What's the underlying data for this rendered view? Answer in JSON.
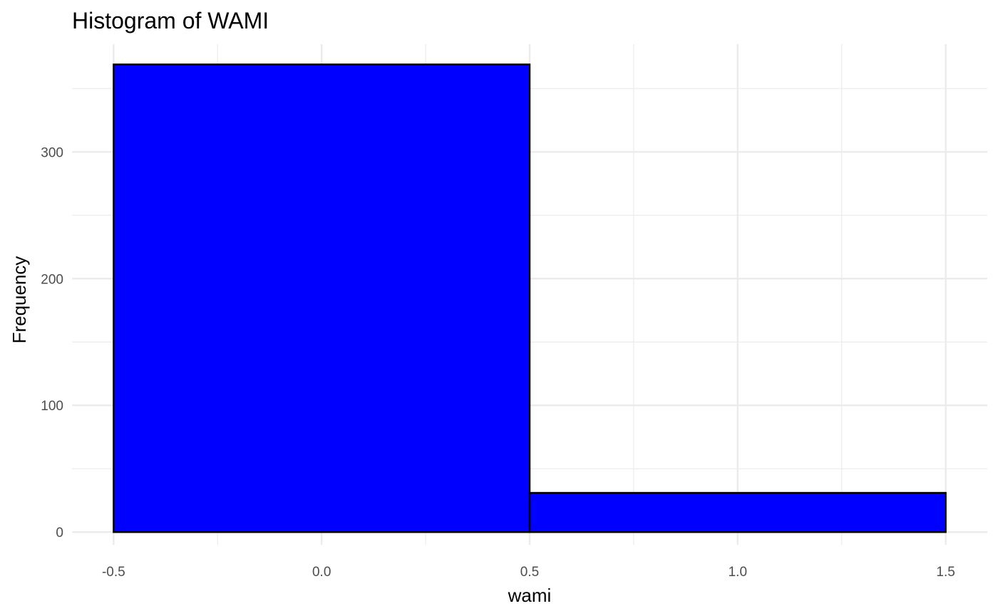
{
  "chart_data": {
    "type": "bar",
    "title": "Histogram of WAMI",
    "xlabel": "wami",
    "ylabel": "Frequency",
    "bins": [
      {
        "start": -0.5,
        "end": 0.5,
        "value": 369
      },
      {
        "start": 0.5,
        "end": 1.5,
        "value": 31
      }
    ],
    "xlim": [
      -0.6,
      1.6
    ],
    "ylim": [
      -10,
      385
    ],
    "x_ticks": [
      -0.5,
      0.0,
      0.5,
      1.0,
      1.5
    ],
    "x_tick_labels": [
      "-0.5",
      "0.0",
      "0.5",
      "1.0",
      "1.5"
    ],
    "y_ticks": [
      0,
      100,
      200,
      300
    ],
    "y_tick_labels": [
      "0",
      "100",
      "200",
      "300"
    ],
    "x_minor_ticks": [
      -0.25,
      0.25,
      0.75,
      1.25
    ],
    "y_minor_ticks": [
      50,
      150,
      250,
      350
    ],
    "grid": true,
    "bar_fill": "#0000ff",
    "bar_stroke": "#000000",
    "grid_color": "#ebebeb",
    "legend": "none"
  }
}
